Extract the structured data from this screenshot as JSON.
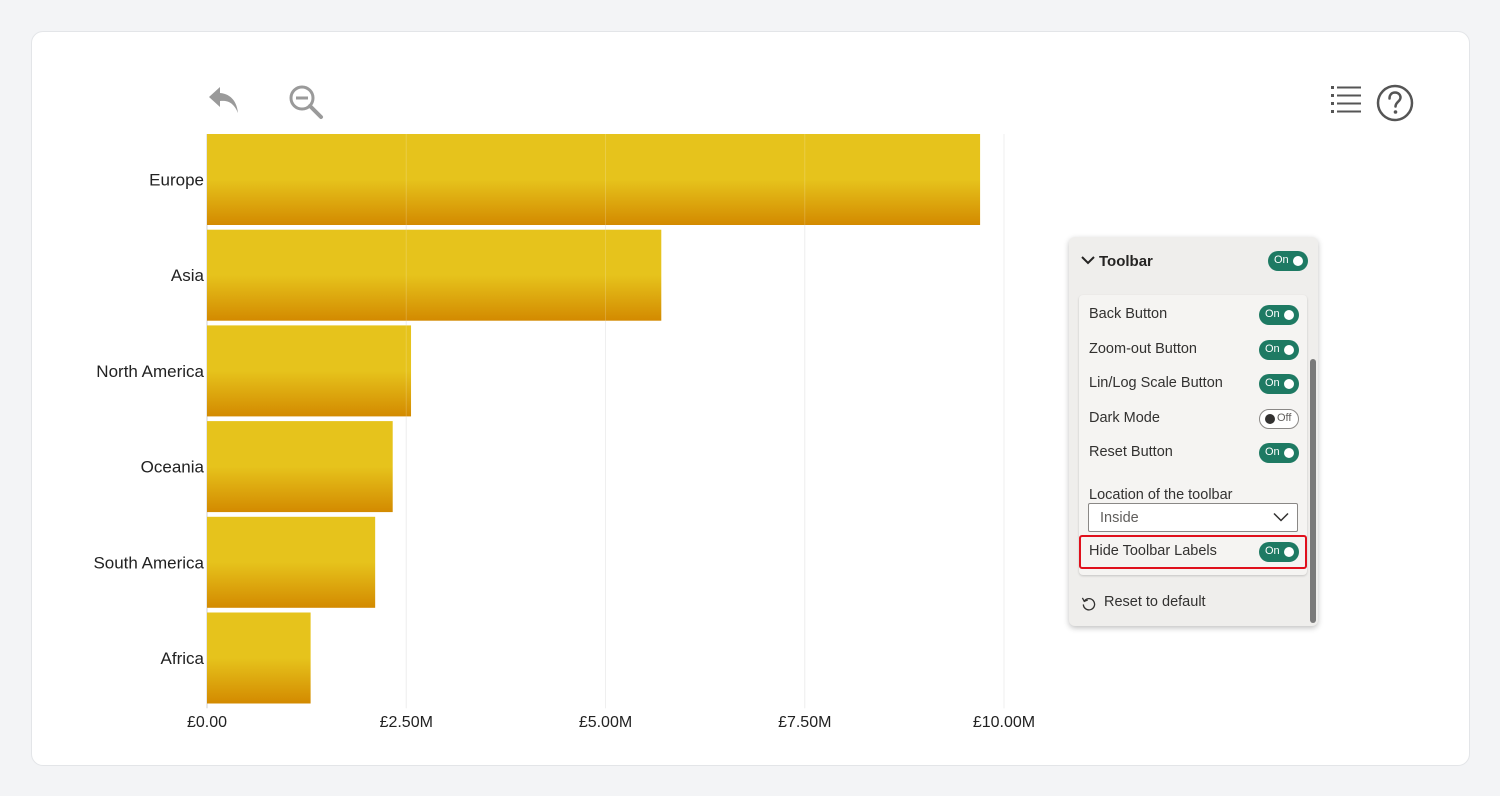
{
  "toolbar_icons": {
    "back": "back-arrow-icon",
    "zoom_out": "zoom-out-icon",
    "legend": "list-icon",
    "help": "help-icon"
  },
  "chart_data": {
    "type": "bar",
    "orientation": "horizontal",
    "categories": [
      "Europe",
      "Asia",
      "North America",
      "Oceania",
      "South America",
      "Africa"
    ],
    "values": [
      9700000,
      5700000,
      2560000,
      2330000,
      2110000,
      1300000
    ],
    "xlim": [
      0,
      10000000
    ],
    "xticks": [
      0,
      2500000,
      5000000,
      7500000,
      10000000
    ],
    "xtick_labels": [
      "£0.00",
      "£2.50M",
      "£5.00M",
      "£7.50M",
      "£10.00M"
    ],
    "grid": true,
    "bar_color_top": "#e6c31c",
    "bar_color_bottom": "#d38a00"
  },
  "panel": {
    "title": "Toolbar",
    "header_toggle": "On",
    "rows": [
      {
        "label": "Back Button",
        "state": "On"
      },
      {
        "label": "Zoom-out Button",
        "state": "On"
      },
      {
        "label": "Lin/Log Scale Button",
        "state": "On"
      },
      {
        "label": "Dark Mode",
        "state": "Off"
      },
      {
        "label": "Reset Button",
        "state": "On"
      }
    ],
    "location_label": "Location of the toolbar",
    "location_value": "Inside",
    "hide_labels": {
      "label": "Hide Toolbar Labels",
      "state": "On"
    },
    "reset_label": "Reset to default",
    "accent": "#1e7a63",
    "highlight_color": "#e0101c"
  }
}
